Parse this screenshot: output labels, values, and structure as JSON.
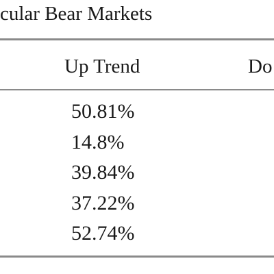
{
  "header": {
    "title": "cular Bear Markets"
  },
  "table": {
    "columns": [
      "Up Trend",
      "Do"
    ],
    "rows": [
      [
        "50.81%"
      ],
      [
        "14.8%"
      ],
      [
        "39.84%"
      ],
      [
        "37.22%"
      ],
      [
        "52.74%"
      ]
    ]
  }
}
